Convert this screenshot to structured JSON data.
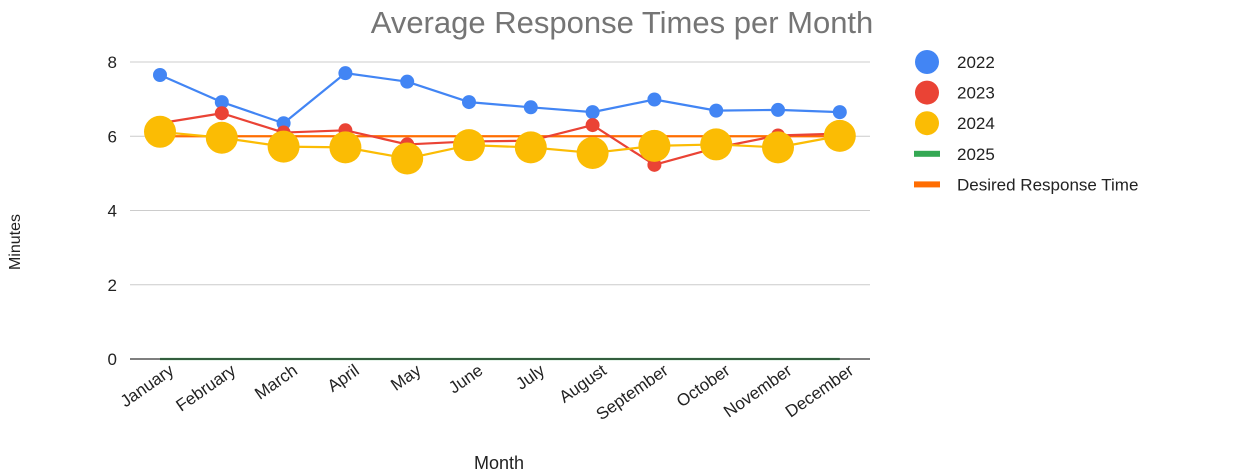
{
  "chart_data": {
    "type": "line",
    "title": "Average Response Times per Month",
    "xlabel": "Month",
    "ylabel": "Minutes",
    "ylim": [
      0,
      8
    ],
    "yticks": [
      0,
      2,
      4,
      6,
      8
    ],
    "grid": true,
    "legend_position": "right",
    "categories": [
      "January",
      "February",
      "March",
      "April",
      "May",
      "June",
      "July",
      "August",
      "September",
      "October",
      "November",
      "December"
    ],
    "series": [
      {
        "name": "2022",
        "color": "#4285F4",
        "marker": "medium",
        "values": [
          7.65,
          6.92,
          6.35,
          7.7,
          7.47,
          6.92,
          6.78,
          6.65,
          6.99,
          6.69,
          6.71,
          6.65
        ]
      },
      {
        "name": "2023",
        "color": "#EA4335",
        "marker": "medium",
        "values": [
          6.35,
          6.62,
          6.1,
          6.16,
          5.78,
          5.86,
          5.88,
          6.3,
          5.23,
          5.69,
          6.02,
          6.07
        ]
      },
      {
        "name": "2024",
        "color": "#FBBC04",
        "marker": "large",
        "values": [
          6.12,
          5.96,
          5.72,
          5.7,
          5.4,
          5.76,
          5.7,
          5.55,
          5.74,
          5.78,
          5.7,
          6.01
        ]
      },
      {
        "name": "2025",
        "color": "#34A853",
        "marker": "none",
        "values": [
          0,
          0,
          0,
          0,
          0,
          0,
          0,
          0,
          0,
          0,
          0,
          0
        ]
      },
      {
        "name": "Desired Response Time",
        "color": "#FF6D01",
        "marker": "none",
        "values": [
          6,
          6,
          6,
          6,
          6,
          6,
          6,
          6,
          6,
          6,
          6,
          6
        ]
      }
    ]
  }
}
